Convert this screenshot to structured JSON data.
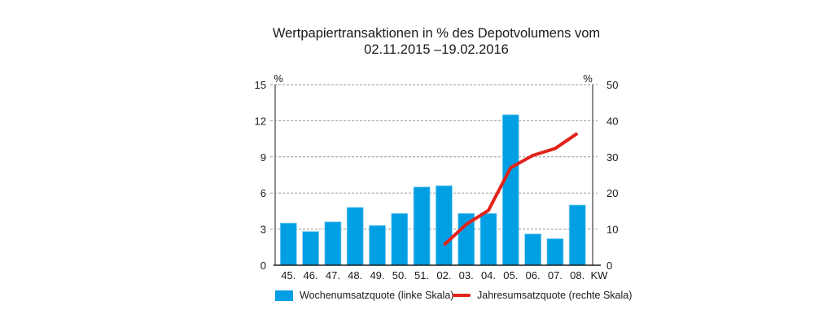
{
  "chart_data": {
    "type": "bar",
    "title_line1": "Wertpapiertransaktionen in % des Depotvolumens vom",
    "title_line2": "02.11.2015 –19.02.2016",
    "categories": [
      "45.",
      "46.",
      "47.",
      "48.",
      "49.",
      "50.",
      "51.",
      "02.",
      "03.",
      "04.",
      "05.",
      "06.",
      "07.",
      "08."
    ],
    "xlabel": "KW",
    "left_axis": {
      "unit": "%",
      "ylim": [
        0,
        15
      ],
      "ticks": [
        0,
        3,
        6,
        9,
        12,
        15
      ]
    },
    "right_axis": {
      "unit": "%",
      "ylim": [
        0,
        50
      ],
      "ticks": [
        0,
        10,
        20,
        30,
        40,
        50
      ]
    },
    "grid": true,
    "series": [
      {
        "name": "Wochenumsatzquote (linke Skala)",
        "type": "bar",
        "axis": "left",
        "color": "#009fe3",
        "values": [
          3.5,
          2.8,
          3.6,
          4.8,
          3.3,
          4.3,
          6.5,
          6.6,
          4.3,
          4.3,
          12.5,
          2.6,
          2.2,
          5.0
        ]
      },
      {
        "name": "Jahresumsatzquote (rechte Skala)",
        "type": "line",
        "axis": "right",
        "color": "#e2231a",
        "values": [
          null,
          null,
          null,
          null,
          null,
          null,
          null,
          5.6,
          11.3,
          15.2,
          27.0,
          30.4,
          32.3,
          36.5
        ]
      }
    ],
    "legend_position": "bottom"
  }
}
